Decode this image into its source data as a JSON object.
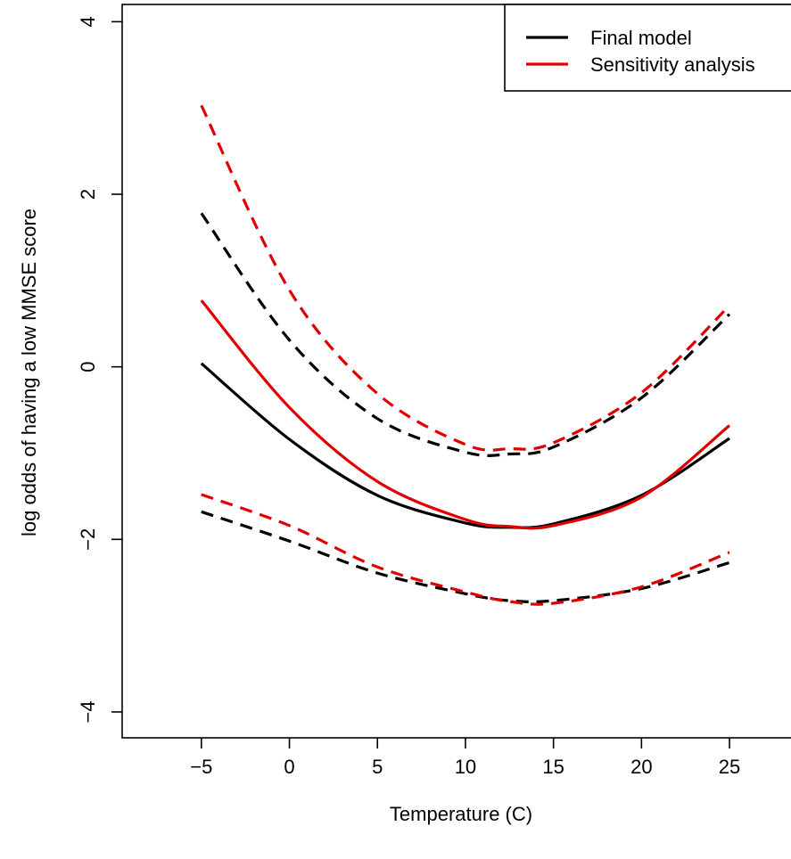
{
  "chart_data": {
    "type": "line",
    "xlabel": "Temperature (C)",
    "ylabel": "log odds of having a low MMSE score",
    "xlim": [
      -9.5,
      29
    ],
    "ylim": [
      -4.3,
      4.2
    ],
    "xticks": [
      -5,
      0,
      5,
      10,
      15,
      20,
      25
    ],
    "yticks": [
      -4,
      -2,
      0,
      2,
      4
    ],
    "grid": false,
    "legend": {
      "position": "top-right",
      "entries": [
        {
          "label": "Final model",
          "color": "#000000"
        },
        {
          "label": "Sensitivity analysis",
          "color": "#e00000"
        }
      ]
    },
    "x": [
      -5,
      0,
      5,
      10,
      12.5,
      15,
      20,
      25
    ],
    "series": [
      {
        "color": "#000000",
        "style": "solid",
        "values": [
          0.04,
          -0.84,
          -1.49,
          -1.81,
          -1.86,
          -1.82,
          -1.49,
          -0.83
        ]
      },
      {
        "color": "#000000",
        "style": "dashed",
        "values": [
          1.78,
          0.31,
          -0.6,
          -0.99,
          -1.01,
          -0.93,
          -0.36,
          0.61
        ]
      },
      {
        "color": "#000000",
        "style": "dashed",
        "values": [
          -1.68,
          -2.02,
          -2.39,
          -2.63,
          -2.71,
          -2.71,
          -2.57,
          -2.27
        ]
      },
      {
        "color": "#e00000",
        "style": "solid",
        "values": [
          0.77,
          -0.47,
          -1.33,
          -1.77,
          -1.85,
          -1.84,
          -1.51,
          -0.68
        ]
      },
      {
        "color": "#e00000",
        "style": "dashed",
        "values": [
          3.03,
          0.89,
          -0.31,
          -0.9,
          -0.95,
          -0.88,
          -0.3,
          0.71
        ]
      },
      {
        "color": "#e00000",
        "style": "dashed",
        "values": [
          -1.48,
          -1.84,
          -2.32,
          -2.61,
          -2.72,
          -2.74,
          -2.55,
          -2.15
        ]
      }
    ]
  }
}
